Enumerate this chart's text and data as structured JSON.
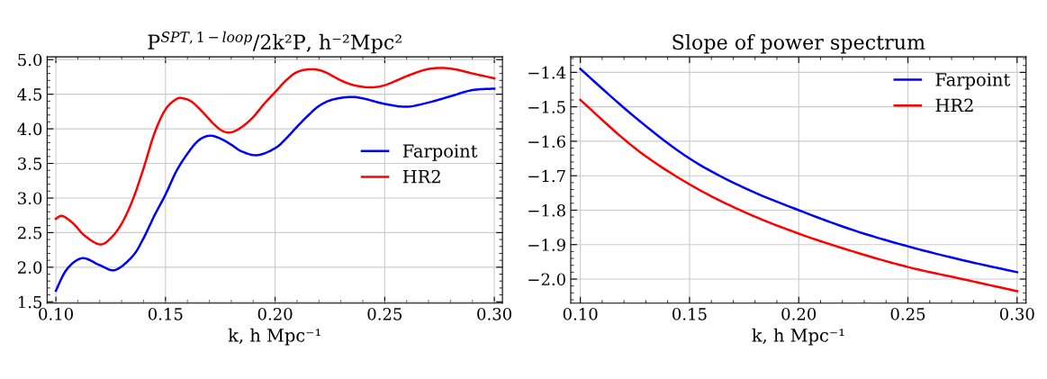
{
  "chart_data": [
    {
      "type": "line",
      "title": "P$^{SPT,1−loop}$/2k²P, h⁻²Mpc²",
      "xlabel": "k, h Mpc⁻¹",
      "xlim": [
        0.096,
        0.3037
      ],
      "ylim": [
        1.48,
        5.04
      ],
      "xticks": [
        {
          "value": 0.1,
          "label": "0.10"
        },
        {
          "value": 0.15,
          "label": "0.15"
        },
        {
          "value": 0.2,
          "label": "0.20"
        },
        {
          "value": 0.25,
          "label": "0.25"
        },
        {
          "value": 0.3,
          "label": "0.30"
        }
      ],
      "yticks": [
        {
          "value": 1.5,
          "label": "1.5"
        },
        {
          "value": 2,
          "label": "2.0"
        },
        {
          "value": 2.5,
          "label": "2.5"
        },
        {
          "value": 3,
          "label": "3.0"
        },
        {
          "value": 3.5,
          "label": "3.5"
        },
        {
          "value": 4,
          "label": "4.0"
        },
        {
          "value": 4.5,
          "label": "4.5"
        },
        {
          "value": 5,
          "label": "5.0"
        }
      ],
      "grid": true,
      "legend": "right",
      "series": [
        {
          "name": "Farpoint",
          "color": "#0000ff",
          "x": [
            0.1,
            0.105,
            0.112,
            0.12,
            0.127,
            0.135,
            0.14,
            0.145,
            0.15,
            0.155,
            0.16,
            0.165,
            0.17,
            0.175,
            0.18,
            0.185,
            0.192,
            0.2,
            0.205,
            0.21,
            0.215,
            0.22,
            0.226,
            0.234,
            0.24,
            0.25,
            0.26,
            0.27,
            0.28,
            0.29,
            0.3
          ],
          "values": [
            1.66,
            1.97,
            2.13,
            2.03,
            1.96,
            2.16,
            2.42,
            2.75,
            3.05,
            3.39,
            3.64,
            3.83,
            3.9,
            3.86,
            3.77,
            3.67,
            3.62,
            3.72,
            3.86,
            4.03,
            4.19,
            4.33,
            4.42,
            4.46,
            4.44,
            4.36,
            4.32,
            4.38,
            4.47,
            4.56,
            4.58
          ]
        },
        {
          "name": "HR2",
          "color": "#ff0000",
          "x": [
            0.1,
            0.103,
            0.108,
            0.113,
            0.12,
            0.125,
            0.13,
            0.135,
            0.14,
            0.145,
            0.15,
            0.155,
            0.158,
            0.162,
            0.167,
            0.172,
            0.176,
            0.18,
            0.185,
            0.19,
            0.195,
            0.2,
            0.205,
            0.21,
            0.216,
            0.222,
            0.23,
            0.236,
            0.243,
            0.25,
            0.26,
            0.268,
            0.275,
            0.282,
            0.29,
            0.3
          ],
          "values": [
            2.7,
            2.74,
            2.63,
            2.46,
            2.33,
            2.42,
            2.63,
            2.97,
            3.43,
            3.94,
            4.28,
            4.43,
            4.44,
            4.39,
            4.24,
            4.07,
            3.97,
            3.95,
            4.03,
            4.17,
            4.36,
            4.53,
            4.7,
            4.82,
            4.86,
            4.83,
            4.7,
            4.63,
            4.6,
            4.63,
            4.76,
            4.85,
            4.88,
            4.86,
            4.8,
            4.73
          ]
        }
      ]
    },
    {
      "type": "line",
      "title": "Slope of power spectrum",
      "xlabel": "k, h Mpc⁻¹",
      "xlim": [
        0.0956,
        0.3041
      ],
      "ylim": [
        -2.07,
        -1.355
      ],
      "xticks": [
        {
          "value": 0.1,
          "label": "0.10"
        },
        {
          "value": 0.15,
          "label": "0.15"
        },
        {
          "value": 0.2,
          "label": "0.20"
        },
        {
          "value": 0.25,
          "label": "0.25"
        },
        {
          "value": 0.3,
          "label": "0.30"
        }
      ],
      "yticks": [
        {
          "value": -1.4,
          "label": "−1.4"
        },
        {
          "value": -1.5,
          "label": "−1.5"
        },
        {
          "value": -1.6,
          "label": "−1.6"
        },
        {
          "value": -1.7,
          "label": "−1.7"
        },
        {
          "value": -1.8,
          "label": "−1.8"
        },
        {
          "value": -1.9,
          "label": "−1.9"
        },
        {
          "value": -2.0,
          "label": "−2.0"
        }
      ],
      "grid": true,
      "legend": "top right",
      "series": [
        {
          "name": "Farpoint",
          "color": "#0000ff",
          "x": [
            0.1,
            0.125,
            0.15,
            0.175,
            0.2,
            0.225,
            0.25,
            0.275,
            0.3
          ],
          "values": [
            -1.39,
            -1.53,
            -1.65,
            -1.735,
            -1.8,
            -1.858,
            -1.905,
            -1.945,
            -1.98
          ]
        },
        {
          "name": "HR2",
          "color": "#ff0000",
          "x": [
            0.1,
            0.125,
            0.15,
            0.175,
            0.2,
            0.225,
            0.25,
            0.275,
            0.3
          ],
          "values": [
            -1.48,
            -1.62,
            -1.725,
            -1.805,
            -1.868,
            -1.92,
            -1.965,
            -2.0,
            -2.035
          ]
        }
      ]
    }
  ]
}
